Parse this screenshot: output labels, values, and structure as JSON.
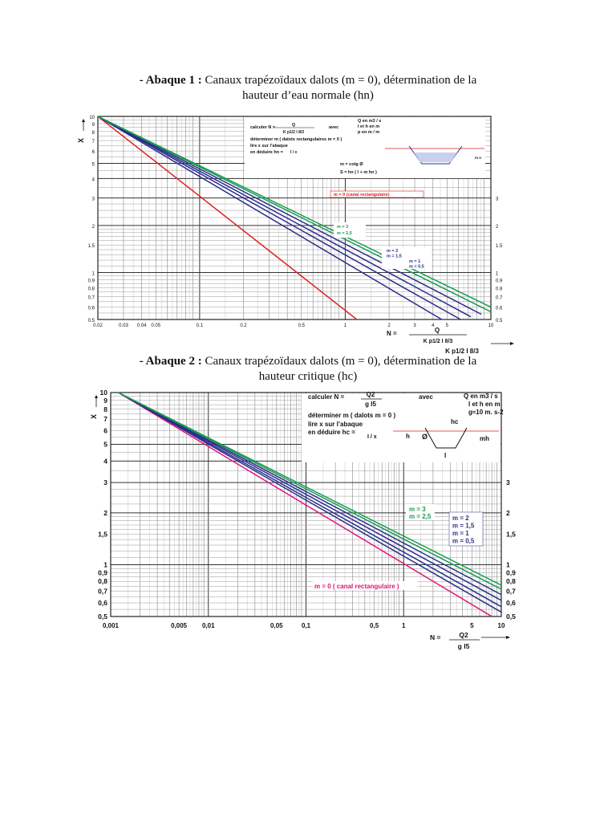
{
  "page": {
    "abaque1_title_prefix": "- Abaque 1 :",
    "abaque1_title_line1": "Canaux trapézoïdaux dalots (m = 0), détermination de la",
    "abaque1_title_line2": "hauteur d’eau normale (hn)",
    "abaque2_title_prefix": "- Abaque 2 :",
    "abaque2_title_line1": "Canaux trapézoïdaux dalots (m = 0), détermination de la",
    "abaque2_title_line2": "hauteur critique (hc)"
  },
  "chart_data": [
    {
      "type": "line",
      "title": "Abaque 1",
      "xscale": "log",
      "yscale": "log",
      "xlim": [
        0.02,
        10
      ],
      "ylim": [
        0.5,
        10
      ],
      "xlabel": "N",
      "ylabel": "X",
      "x_ticks": [
        "0.02",
        "0.03",
        "0.04",
        "0.05",
        "0.1",
        "0.2",
        "0.5",
        "1",
        "2",
        "3",
        "4",
        "5",
        "10"
      ],
      "x_tick_values": [
        0.02,
        0.03,
        0.04,
        0.05,
        0.1,
        0.2,
        0.5,
        1,
        2,
        3,
        4,
        5,
        10
      ],
      "y_ticks": [
        "10",
        "9",
        "8",
        "7",
        "6",
        "5",
        "4",
        "3",
        "2",
        "1.5",
        "1",
        "0.9",
        "0.8",
        "0.7",
        "0.6",
        "0.5"
      ],
      "y_tick_values": [
        10,
        9,
        8,
        7,
        6,
        5,
        4,
        3,
        2,
        1.5,
        1,
        0.9,
        0.8,
        0.7,
        0.6,
        0.5
      ],
      "y_ticks_right": [
        "3",
        "2",
        "1.5",
        "1",
        "0.9",
        "0.8",
        "0.7",
        "0.6",
        "0.5"
      ],
      "y_tick_values_right": [
        3,
        2,
        1.5,
        1,
        0.9,
        0.8,
        0.7,
        0.6,
        0.5
      ],
      "formula_n": "N =",
      "formula_numerator": "Q",
      "formula_denominator": "K p1/2 I 8/3",
      "formula_arrow_label": "K p1/2 I 8/3",
      "instructions": {
        "calc": "calculer  N =",
        "calc_num": "Q",
        "calc_den": "K p1/2 I 8/3",
        "avec": "avec",
        "unit1": "Q en m3 / s",
        "unit2": "I et h en m",
        "unit3": "p en m / m",
        "step1": "déterminer m ( dalots rectangulaires m = 0 )",
        "step2": "lire x sur l’abaque",
        "step3": "en déduire hn =",
        "step3_frac": "I / x",
        "def1": "m = cotg Ø",
        "def2": "S = hn ( I + m hn )"
      },
      "annotation_rect": "m = 0  (canal rectangulaire)",
      "annotation_top": [
        "m = 3",
        "m = 2,5"
      ],
      "annotation_bottom": [
        "m = 2",
        "m = 1,5",
        "m = 1",
        "m = 0,5"
      ],
      "series": [
        {
          "name": "m = 0",
          "color": "#e02020",
          "x": [
            0.02,
            1.2
          ],
          "y": [
            10,
            0.5
          ]
        },
        {
          "name": "m = 0,5",
          "color": "#2a2e8c",
          "x": [
            0.02,
            4.6
          ],
          "y": [
            10,
            0.5
          ]
        },
        {
          "name": "m = 1",
          "color": "#2a2e8c",
          "x": [
            0.02,
            6.2
          ],
          "y": [
            10,
            0.5
          ]
        },
        {
          "name": "m = 1,5",
          "color": "#2a2e8c",
          "x": [
            0.02,
            7.3
          ],
          "y": [
            10,
            0.52
          ]
        },
        {
          "name": "m = 2",
          "color": "#2a2e8c",
          "x": [
            0.02,
            8.6
          ],
          "y": [
            10,
            0.54
          ]
        },
        {
          "name": "m = 2,5",
          "color": "#1a9a50",
          "x": [
            0.02,
            10
          ],
          "y": [
            10,
            0.56
          ]
        },
        {
          "name": "m = 3",
          "color": "#1a9a50",
          "x": [
            0.02,
            10
          ],
          "y": [
            10,
            0.6
          ]
        }
      ]
    },
    {
      "type": "line",
      "title": "Abaque 2",
      "xscale": "log",
      "yscale": "log",
      "xlim": [
        0.001,
        10
      ],
      "ylim": [
        0.5,
        10
      ],
      "xlabel": "N",
      "ylabel": "X",
      "x_ticks": [
        "0,001",
        "0,005",
        "0,01",
        "0,05",
        "0,1",
        "0,5",
        "1",
        "5",
        "10"
      ],
      "x_tick_values": [
        0.001,
        0.005,
        0.01,
        0.05,
        0.1,
        0.5,
        1,
        5,
        10
      ],
      "y_ticks": [
        "10",
        "9",
        "8",
        "7",
        "6",
        "5",
        "4",
        "3",
        "2",
        "1,5",
        "1",
        "0,9",
        "0,8",
        "0,7",
        "0,6",
        "0,5"
      ],
      "y_tick_values": [
        10,
        9,
        8,
        7,
        6,
        5,
        4,
        3,
        2,
        1.5,
        1,
        0.9,
        0.8,
        0.7,
        0.6,
        0.5
      ],
      "y_ticks_right": [
        "3",
        "2",
        "1,5",
        "1",
        "0,9",
        "0,8",
        "0,7",
        "0,6",
        "0,5"
      ],
      "y_tick_values_right": [
        3,
        2,
        1.5,
        1,
        0.9,
        0.8,
        0.7,
        0.6,
        0.5
      ],
      "formula_n": "N =",
      "formula_numerator": "Q2",
      "formula_denominator": "g I5",
      "instructions": {
        "calc": "calculer   N =",
        "calc_num": "Q2",
        "calc_den": "g I5",
        "avec": "avec",
        "unit1": "Q en m3 / s",
        "unit2": "I et h en m",
        "unit3": "g≈10 m. s-2",
        "step1": "déterminer m  ( dalots m = 0 )",
        "step2": "lire x sur l’abaque",
        "step3": "en déduire hc =",
        "step3_frac": "I / x",
        "fig_h": "h",
        "fig_hc": "hc",
        "fig_phi": "Ø",
        "fig_mh": "mh",
        "fig_l": "I"
      },
      "annotation_rect": "m = 0 ( canal rectangulaire )",
      "annotation_top": [
        "m = 3",
        "m = 2,5"
      ],
      "annotation_bottom": [
        "m = 2",
        "m = 1,5",
        "m = 1",
        "m = 0,5"
      ],
      "series": [
        {
          "name": "m = 0",
          "color": "#e0157a",
          "x": [
            0.0012,
            8
          ],
          "y": [
            10,
            0.5
          ]
        },
        {
          "name": "m = 0,5",
          "color": "#2a2e8c",
          "x": [
            0.0012,
            10
          ],
          "y": [
            10,
            0.53
          ]
        },
        {
          "name": "m = 1",
          "color": "#2a2e8c",
          "x": [
            0.0012,
            10
          ],
          "y": [
            10,
            0.57
          ]
        },
        {
          "name": "m = 1,5",
          "color": "#2a2e8c",
          "x": [
            0.0012,
            10
          ],
          "y": [
            10,
            0.62
          ]
        },
        {
          "name": "m = 2",
          "color": "#2a2e8c",
          "x": [
            0.0012,
            10
          ],
          "y": [
            10,
            0.67
          ]
        },
        {
          "name": "m = 2,5",
          "color": "#1a9a50",
          "x": [
            0.0012,
            10
          ],
          "y": [
            10,
            0.72
          ]
        },
        {
          "name": "m = 3",
          "color": "#1a9a50",
          "x": [
            0.0012,
            10
          ],
          "y": [
            10,
            0.76
          ]
        }
      ]
    }
  ]
}
